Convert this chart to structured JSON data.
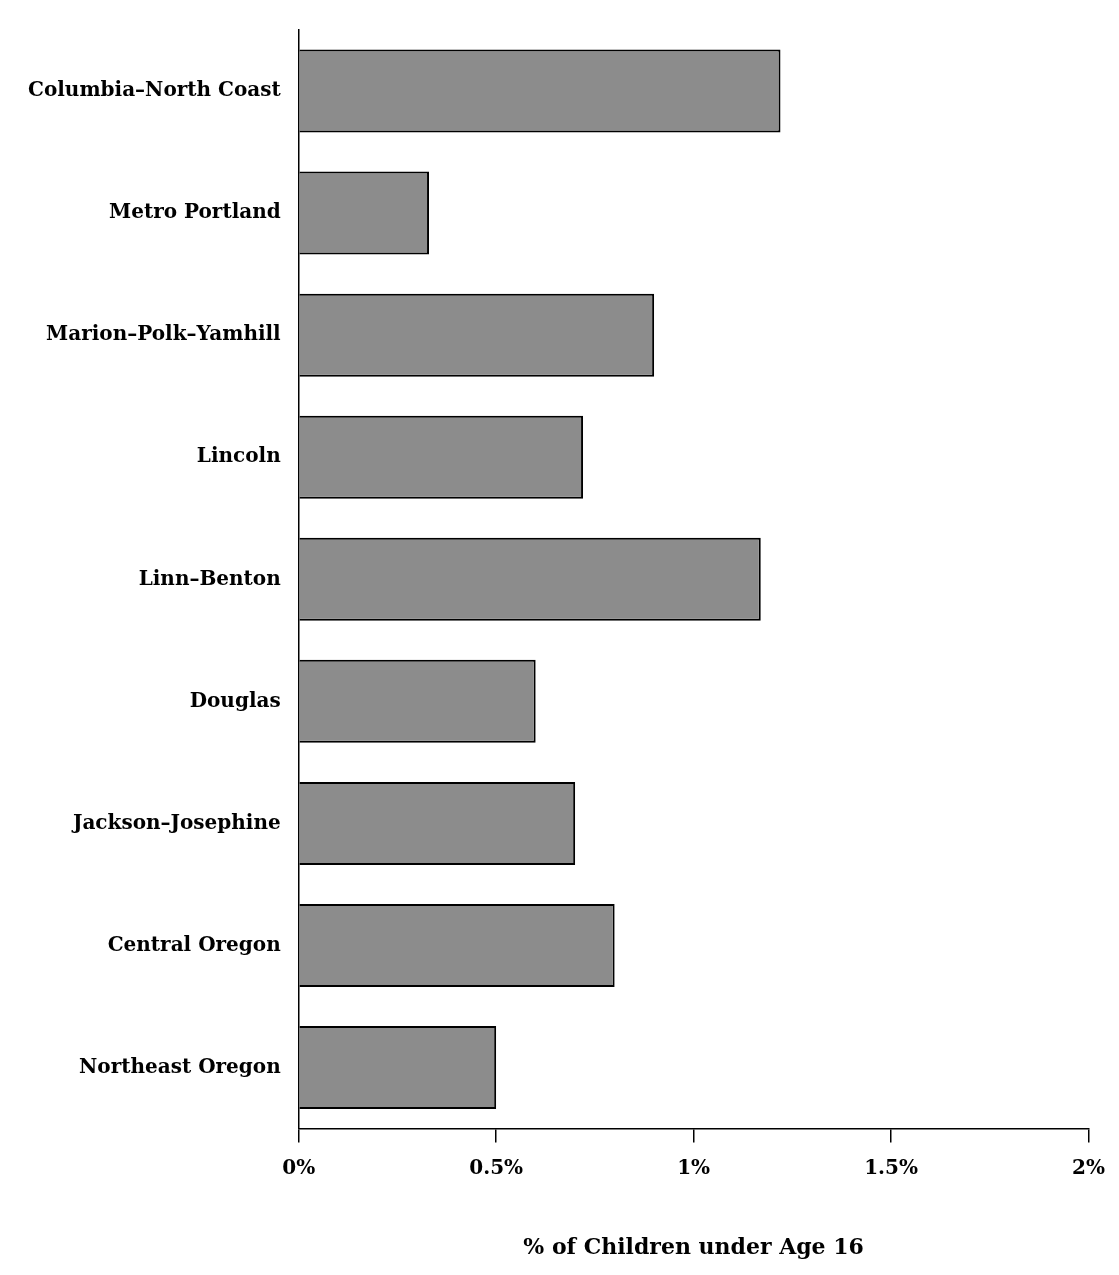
{
  "chart_data": {
    "type": "bar",
    "orientation": "horizontal",
    "xlabel": "% of Children under Age 16",
    "categories": [
      "Columbia–North Coast",
      "Metro Portland",
      "Marion–Polk–Yamhill",
      "Lincoln",
      "Linn–Benton",
      "Douglas",
      "Jackson–Josephine",
      "Central Oregon",
      "Northeast Oregon"
    ],
    "values": [
      1.22,
      0.33,
      0.9,
      0.72,
      1.17,
      0.6,
      0.7,
      0.8,
      0.5
    ],
    "color": "#8c8c8c",
    "xlim": [
      0,
      2
    ],
    "xticks": [
      {
        "value": 0,
        "label": "0%"
      },
      {
        "value": 0.5,
        "label": "0.5%"
      },
      {
        "value": 1,
        "label": "1%"
      },
      {
        "value": 1.5,
        "label": "1.5%"
      },
      {
        "value": 2,
        "label": "2%"
      }
    ],
    "grid": false,
    "legend": false
  }
}
